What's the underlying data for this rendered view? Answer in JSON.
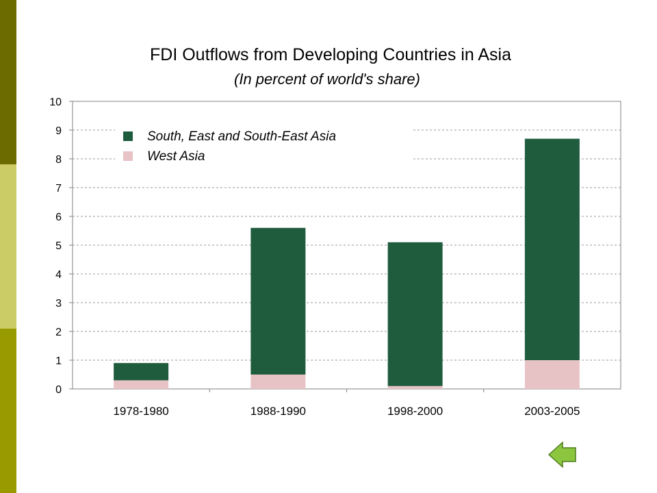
{
  "theme": {
    "sidebar_colors": [
      "#6b6b00",
      "#cccc66",
      "#999900"
    ],
    "series_colors": [
      "#e8c3c6",
      "#1f5c3e"
    ],
    "back_button_color": "#8cc63f"
  },
  "chart_data": {
    "type": "bar",
    "stacked": true,
    "title": "FDI Outflows from Developing Countries in Asia",
    "subtitle": "(In percent of world's share)",
    "xlabel": "",
    "ylabel": "",
    "categories": [
      "1978-1980",
      "1988-1990",
      "1998-2000",
      "2003-2005"
    ],
    "series": [
      {
        "name": "West Asia",
        "values": [
          0.3,
          0.5,
          0.1,
          1.0
        ]
      },
      {
        "name": "South, East and South-East Asia",
        "values": [
          0.6,
          5.1,
          5.0,
          7.7
        ]
      }
    ],
    "legend_order": [
      "South, East and South-East Asia",
      "West Asia"
    ],
    "ylim": [
      0,
      10
    ],
    "yticks": [
      0,
      1,
      2,
      3,
      4,
      5,
      6,
      7,
      8,
      9,
      10
    ],
    "grid": true,
    "legend_position": "top-left"
  },
  "nav": {
    "back_icon": "left-arrow-icon"
  }
}
